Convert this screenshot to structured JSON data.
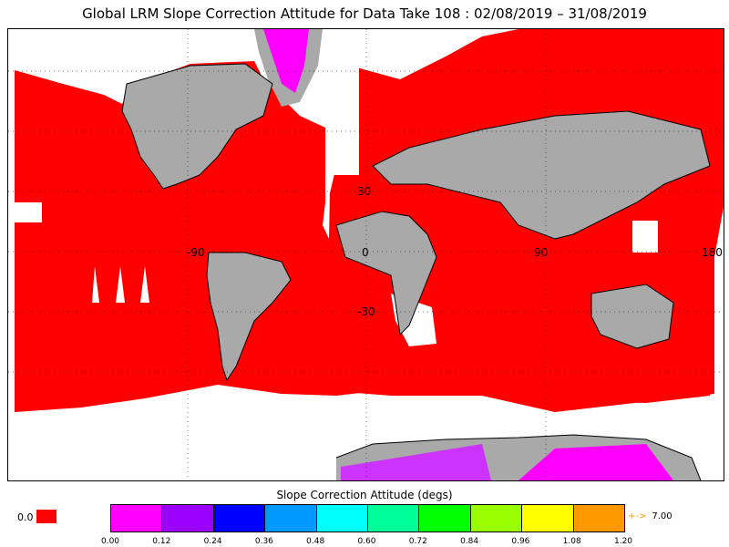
{
  "title": "Global LRM Slope Correction Attitude for Data Take 108 : 02/08/2019 – 31/08/2019",
  "map": {
    "ocean_color": "#ff0000",
    "land_color": "#a9a9a9",
    "nodata_color": "#ffffff",
    "gridline_color": "#000000",
    "longitude_labels": [
      "-90",
      "0",
      "90",
      "180"
    ],
    "latitude_labels": [
      "30",
      "-30"
    ]
  },
  "legend": {
    "title": "Slope Correction Attitude (degs)",
    "zero_value": "0.0",
    "zero_color": "#ff0000",
    "colors": [
      "#ff00ff",
      "#9b00ff",
      "#0000ff",
      "#0099ff",
      "#00ffff",
      "#00ff99",
      "#00ff00",
      "#99ff00",
      "#ffff00",
      "#ff9900"
    ],
    "ticks": [
      "0.00",
      "0.12",
      "0.24",
      "0.36",
      "0.48",
      "0.60",
      "0.72",
      "0.84",
      "0.96",
      "1.08",
      "1.20"
    ],
    "overflow_arrow": "+->",
    "overflow_value": "7.00",
    "overflow_color": "#ff9900"
  }
}
